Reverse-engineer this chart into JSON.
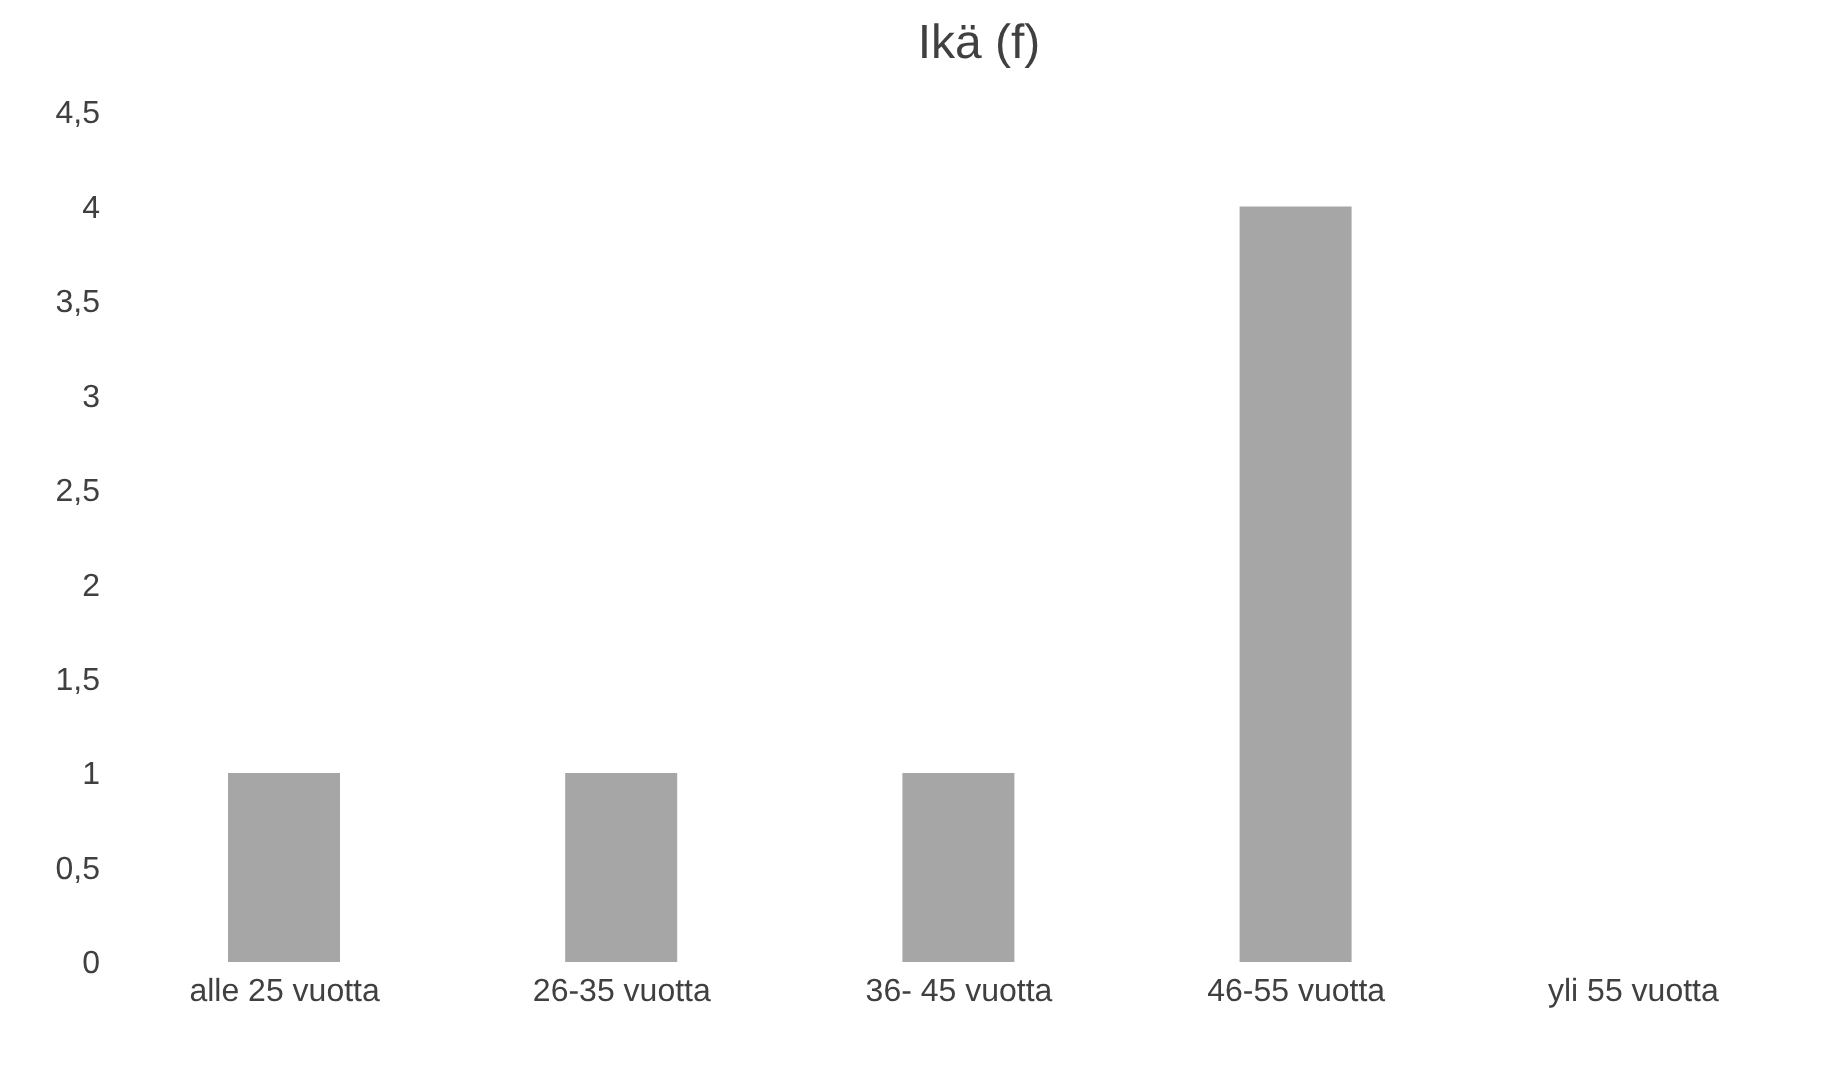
{
  "chart_data": {
    "type": "bar",
    "title": "Ikä (f)",
    "categories": [
      "alle 25 vuotta",
      "26-35 vuotta",
      "36- 45 vuotta",
      "46-55 vuotta",
      "yli 55 vuotta"
    ],
    "values": [
      1,
      1,
      1,
      4,
      0
    ],
    "color": "#a6a6a6",
    "ylim": [
      0,
      4.5
    ],
    "yticks": [
      0,
      {
        "value": 0.5,
        "label": "0,5"
      },
      1,
      {
        "value": 1.5,
        "label": "1,5"
      },
      2,
      {
        "value": 2.5,
        "label": "2,5"
      },
      3,
      {
        "value": 3.5,
        "label": "3,5"
      },
      4,
      {
        "value": 4.5,
        "label": "4,5"
      }
    ]
  }
}
